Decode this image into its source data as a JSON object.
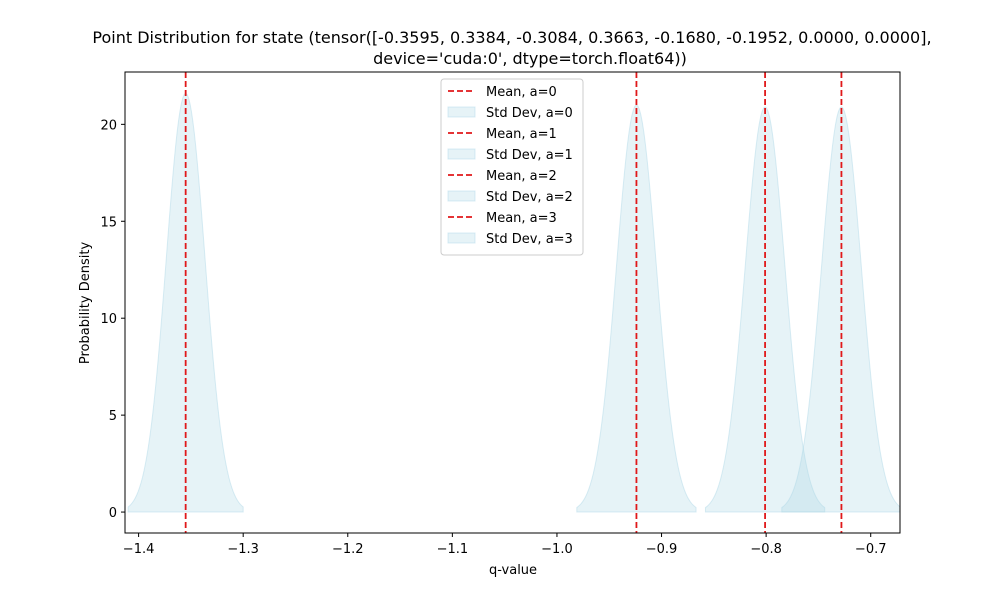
{
  "chart_data": {
    "type": "area",
    "title_line1": "Point Distribution for state (tensor([-0.3595,  0.3384, -0.3084,  0.3663, -0.1680, -0.1952,  0.0000,  0.0000],",
    "title_line2": "device='cuda:0', dtype=torch.float64))",
    "xlabel": "q-value",
    "ylabel": "Probability Density",
    "xlim": [
      -1.413,
      -0.672
    ],
    "ylim": [
      -1.08,
      22.7
    ],
    "xticks": [
      -1.4,
      -1.3,
      -1.2,
      -1.1,
      -1.0,
      -0.9,
      -0.8,
      -0.7
    ],
    "xtick_labels": [
      "−1.4",
      "−1.3",
      "−1.2",
      "−1.1",
      "−1.0",
      "−0.9",
      "−0.8",
      "−0.7"
    ],
    "yticks": [
      0,
      5,
      10,
      15,
      20
    ],
    "ytick_labels": [
      "0",
      "5",
      "10",
      "15",
      "20"
    ],
    "grid": false,
    "legend_position": "top-center",
    "colors": {
      "mean_line": "#e0181a",
      "std_fill": "#add8e6"
    },
    "series": [
      {
        "action": 0,
        "mean": -1.355,
        "std": 0.0185,
        "x_range": [
          -1.41,
          -1.3
        ],
        "peak_density": 21.6
      },
      {
        "action": 1,
        "mean": -0.924,
        "std": 0.019,
        "x_range": [
          -0.981,
          -0.867
        ],
        "peak_density": 21.0
      },
      {
        "action": 2,
        "mean": -0.801,
        "std": 0.019,
        "x_range": [
          -0.858,
          -0.744
        ],
        "peak_density": 20.9
      },
      {
        "action": 3,
        "mean": -0.728,
        "std": 0.019,
        "x_range": [
          -0.785,
          -0.671
        ],
        "peak_density": 20.9
      }
    ],
    "legend": [
      {
        "label": "Mean, a=0",
        "kind": "line"
      },
      {
        "label": "Std Dev, a=0",
        "kind": "patch"
      },
      {
        "label": "Mean, a=1",
        "kind": "line"
      },
      {
        "label": "Std Dev, a=1",
        "kind": "patch"
      },
      {
        "label": "Mean, a=2",
        "kind": "line"
      },
      {
        "label": "Std Dev, a=2",
        "kind": "patch"
      },
      {
        "label": "Mean, a=3",
        "kind": "line"
      },
      {
        "label": "Std Dev, a=3",
        "kind": "patch"
      }
    ]
  }
}
